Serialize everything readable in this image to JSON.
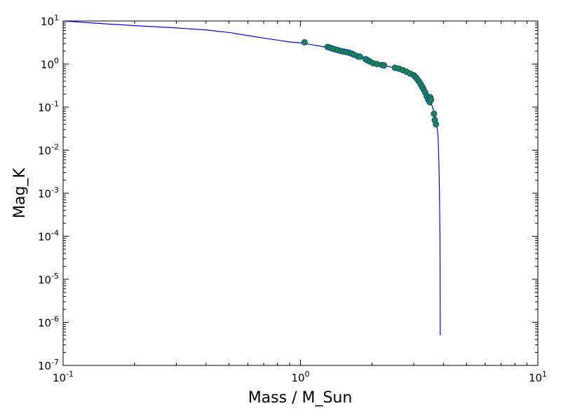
{
  "chart_data": {
    "type": "scatter",
    "title": "",
    "xlabel": "Mass / M_Sun",
    "ylabel": "Mag_K",
    "xscale": "log",
    "yscale": "log",
    "xlim": [
      0.1,
      10
    ],
    "ylim": [
      1e-07,
      10
    ],
    "grid": false,
    "legend": "none",
    "x_ticks": [
      {
        "value": 0.1,
        "base": "10",
        "exp": "-1"
      },
      {
        "value": 1,
        "base": "10",
        "exp": "0"
      },
      {
        "value": 10,
        "base": "10",
        "exp": "1"
      }
    ],
    "y_ticks": [
      {
        "value": 1e-07,
        "base": "10",
        "exp": "-7"
      },
      {
        "value": 1e-06,
        "base": "10",
        "exp": "-6"
      },
      {
        "value": 1e-05,
        "base": "10",
        "exp": "-5"
      },
      {
        "value": 0.0001,
        "base": "10",
        "exp": "-4"
      },
      {
        "value": 0.001,
        "base": "10",
        "exp": "-3"
      },
      {
        "value": 0.01,
        "base": "10",
        "exp": "-2"
      },
      {
        "value": 0.1,
        "base": "10",
        "exp": "-1"
      },
      {
        "value": 1,
        "base": "10",
        "exp": "0"
      },
      {
        "value": 10,
        "base": "10",
        "exp": "1"
      }
    ],
    "line_color": "#0000ff",
    "marker_color": "#1f8a3f",
    "marker_edge_color": "#0044aa",
    "curve": {
      "x": [
        0.1,
        0.15,
        0.2,
        0.3,
        0.4,
        0.5,
        0.6,
        0.7,
        0.8,
        0.9,
        1.0,
        1.1,
        1.2,
        1.3,
        1.4,
        1.5,
        1.6,
        1.7,
        1.8,
        1.9,
        2.0,
        2.1,
        2.2,
        2.3,
        2.4,
        2.5,
        2.6,
        2.7,
        2.8,
        2.9,
        3.0,
        3.1,
        3.2,
        3.3,
        3.4,
        3.5,
        3.6,
        3.7,
        3.75,
        3.8,
        3.83,
        3.85,
        3.87,
        3.88
      ],
      "y": [
        10.0,
        8.6,
        7.8,
        6.9,
        6.2,
        5.4,
        4.6,
        4.0,
        3.6,
        3.25,
        3.1,
        2.85,
        2.62,
        2.42,
        2.22,
        2.03,
        1.85,
        1.67,
        1.5,
        1.33,
        1.2,
        1.08,
        0.98,
        0.9,
        0.85,
        0.81,
        0.76,
        0.71,
        0.65,
        0.57,
        0.5,
        0.42,
        0.35,
        0.28,
        0.2,
        0.15,
        0.1,
        0.06,
        0.04,
        0.02,
        0.005,
        0.001,
        0.0001,
        5e-07
      ]
    },
    "points": {
      "x": [
        1.04,
        1.3,
        1.33,
        1.36,
        1.4,
        1.44,
        1.48,
        1.52,
        1.56,
        1.6,
        1.64,
        1.68,
        1.74,
        1.78,
        1.88,
        1.92,
        1.96,
        2.02,
        2.1,
        2.2,
        2.25,
        2.5,
        2.6,
        2.7,
        2.8,
        2.9,
        3.0,
        3.05,
        3.1,
        3.15,
        3.2,
        3.25,
        3.3,
        3.35,
        3.4,
        3.45,
        3.5,
        3.52,
        3.55,
        3.65,
        3.68,
        3.72
      ],
      "y": [
        3.2,
        2.5,
        2.4,
        2.3,
        2.2,
        2.1,
        2.0,
        1.95,
        1.9,
        1.85,
        1.75,
        1.65,
        1.52,
        1.48,
        1.3,
        1.22,
        1.15,
        1.05,
        1.0,
        0.95,
        0.93,
        0.82,
        0.78,
        0.72,
        0.66,
        0.6,
        0.55,
        0.5,
        0.45,
        0.4,
        0.35,
        0.3,
        0.26,
        0.22,
        0.18,
        0.15,
        0.13,
        0.17,
        0.15,
        0.07,
        0.05,
        0.04
      ]
    }
  }
}
